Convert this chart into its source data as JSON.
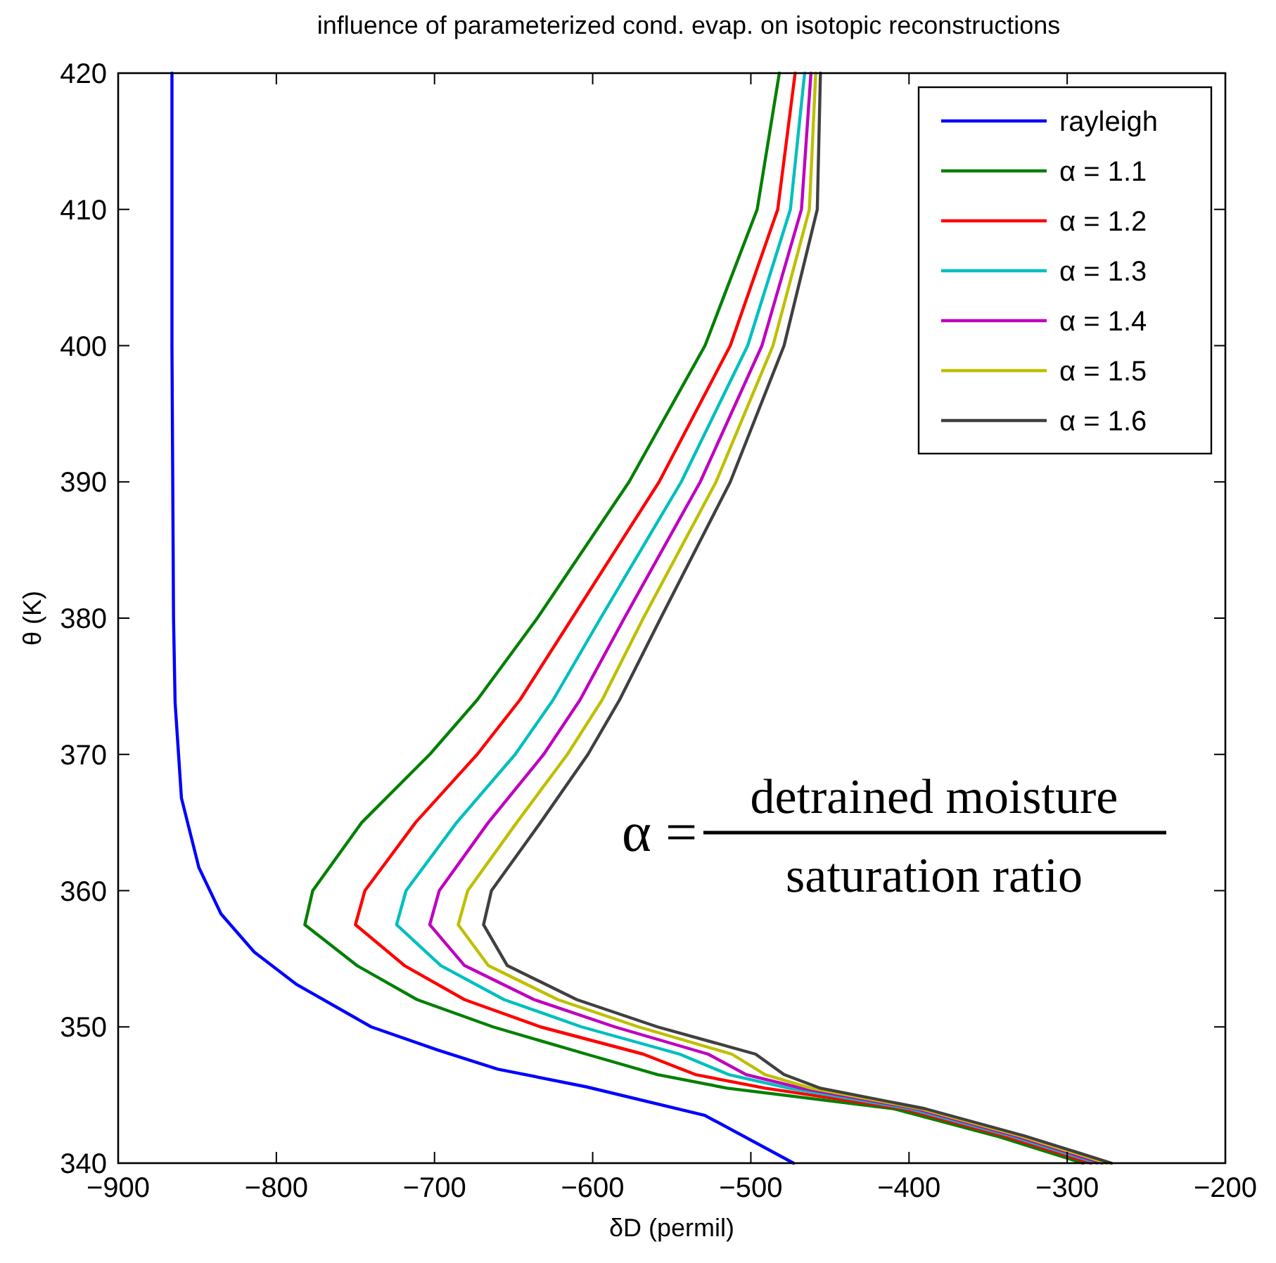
{
  "chart_data": {
    "type": "line",
    "title": "influence of parameterized cond. evap. on isotopic reconstructions",
    "xlabel": "δD (permil)",
    "ylabel": "θ (K)",
    "xlim": [
      -900,
      -200
    ],
    "xticks": [
      -900,
      -800,
      -700,
      -600,
      -500,
      -400,
      -300,
      -200
    ],
    "ylim": [
      340,
      420
    ],
    "yticks": [
      340,
      350,
      360,
      370,
      380,
      390,
      400,
      410,
      420
    ],
    "grid": false,
    "legend": "top right",
    "line_style": "solid",
    "marker": "none",
    "annotations": [
      "α =",
      "detrained moisture",
      "saturation ratio"
    ],
    "series": [
      {
        "name": "rayleigh",
        "color": "#0000ff",
        "x": [
          -473,
          -529,
          -604,
          -660,
          -698,
          -740,
          -787,
          -814,
          -835,
          -849,
          -860,
          -864,
          -865,
          -866,
          -866
        ],
        "values": [
          340,
          343.5,
          345.6,
          346.9,
          348.3,
          350,
          353.1,
          355.5,
          358.3,
          361.7,
          366.8,
          373.8,
          380,
          400,
          420
        ]
      },
      {
        "name": "α = 1.1",
        "color": "#008000",
        "x": [
          -290,
          -345,
          -410,
          -515,
          -559,
          -604,
          -663,
          -711,
          -749,
          -782,
          -777,
          -746,
          -703,
          -673,
          -635,
          -577,
          -529,
          -496,
          -482
        ],
        "values": [
          340,
          342,
          344,
          345.5,
          346.5,
          348,
          350,
          352,
          354.5,
          357.5,
          360,
          365,
          370,
          374,
          380,
          390,
          400,
          410,
          420
        ]
      },
      {
        "name": "α = 1.2",
        "color": "#ff0000",
        "x": [
          -285,
          -340,
          -404,
          -491,
          -535,
          -568,
          -633,
          -681,
          -719,
          -750,
          -744,
          -712,
          -673,
          -646,
          -613,
          -558,
          -513,
          -483,
          -472
        ],
        "values": [
          340,
          342,
          344,
          345.5,
          346.5,
          348,
          350,
          352,
          354.5,
          357.5,
          360,
          365,
          370,
          374,
          380,
          390,
          400,
          410,
          420
        ]
      },
      {
        "name": "α = 1.3",
        "color": "#00bfbf",
        "x": [
          -281,
          -336,
          -400,
          -476,
          -514,
          -545,
          -607,
          -656,
          -696,
          -724,
          -718,
          -686,
          -649,
          -625,
          -595,
          -544,
          -502,
          -475,
          -466
        ],
        "values": [
          340,
          342,
          344,
          345.5,
          346.5,
          348,
          350,
          352,
          354.5,
          357.5,
          360,
          365,
          370,
          374,
          380,
          390,
          400,
          410,
          420
        ]
      },
      {
        "name": "α = 1.4",
        "color": "#bf00bf",
        "x": [
          -278,
          -333,
          -396,
          -468,
          -503,
          -527,
          -586,
          -637,
          -681,
          -703,
          -697,
          -666,
          -631,
          -608,
          -580,
          -532,
          -493,
          -468,
          -462
        ],
        "values": [
          340,
          342,
          344,
          345.5,
          346.5,
          348,
          350,
          352,
          354.5,
          357.5,
          360,
          365,
          370,
          374,
          380,
          390,
          400,
          410,
          420
        ]
      },
      {
        "name": "α = 1.5",
        "color": "#bfbf00",
        "x": [
          -275,
          -330,
          -393,
          -462,
          -491,
          -512,
          -571,
          -622,
          -666,
          -685,
          -679,
          -648,
          -616,
          -594,
          -568,
          -522,
          -486,
          -463,
          -459
        ],
        "values": [
          340,
          342,
          344,
          345.5,
          346.5,
          348,
          350,
          352,
          354.5,
          357.5,
          360,
          365,
          370,
          374,
          380,
          390,
          400,
          410,
          420
        ]
      },
      {
        "name": "α = 1.6",
        "color": "#404040",
        "x": [
          -272,
          -327,
          -390,
          -456,
          -479,
          -497,
          -559,
          -610,
          -654,
          -669,
          -664,
          -633,
          -603,
          -583,
          -557,
          -513,
          -479,
          -458,
          -456
        ],
        "values": [
          340,
          342,
          344,
          345.5,
          346.5,
          348,
          350,
          352,
          354.5,
          357.5,
          360,
          365,
          370,
          374,
          380,
          390,
          400,
          410,
          420
        ]
      }
    ]
  }
}
